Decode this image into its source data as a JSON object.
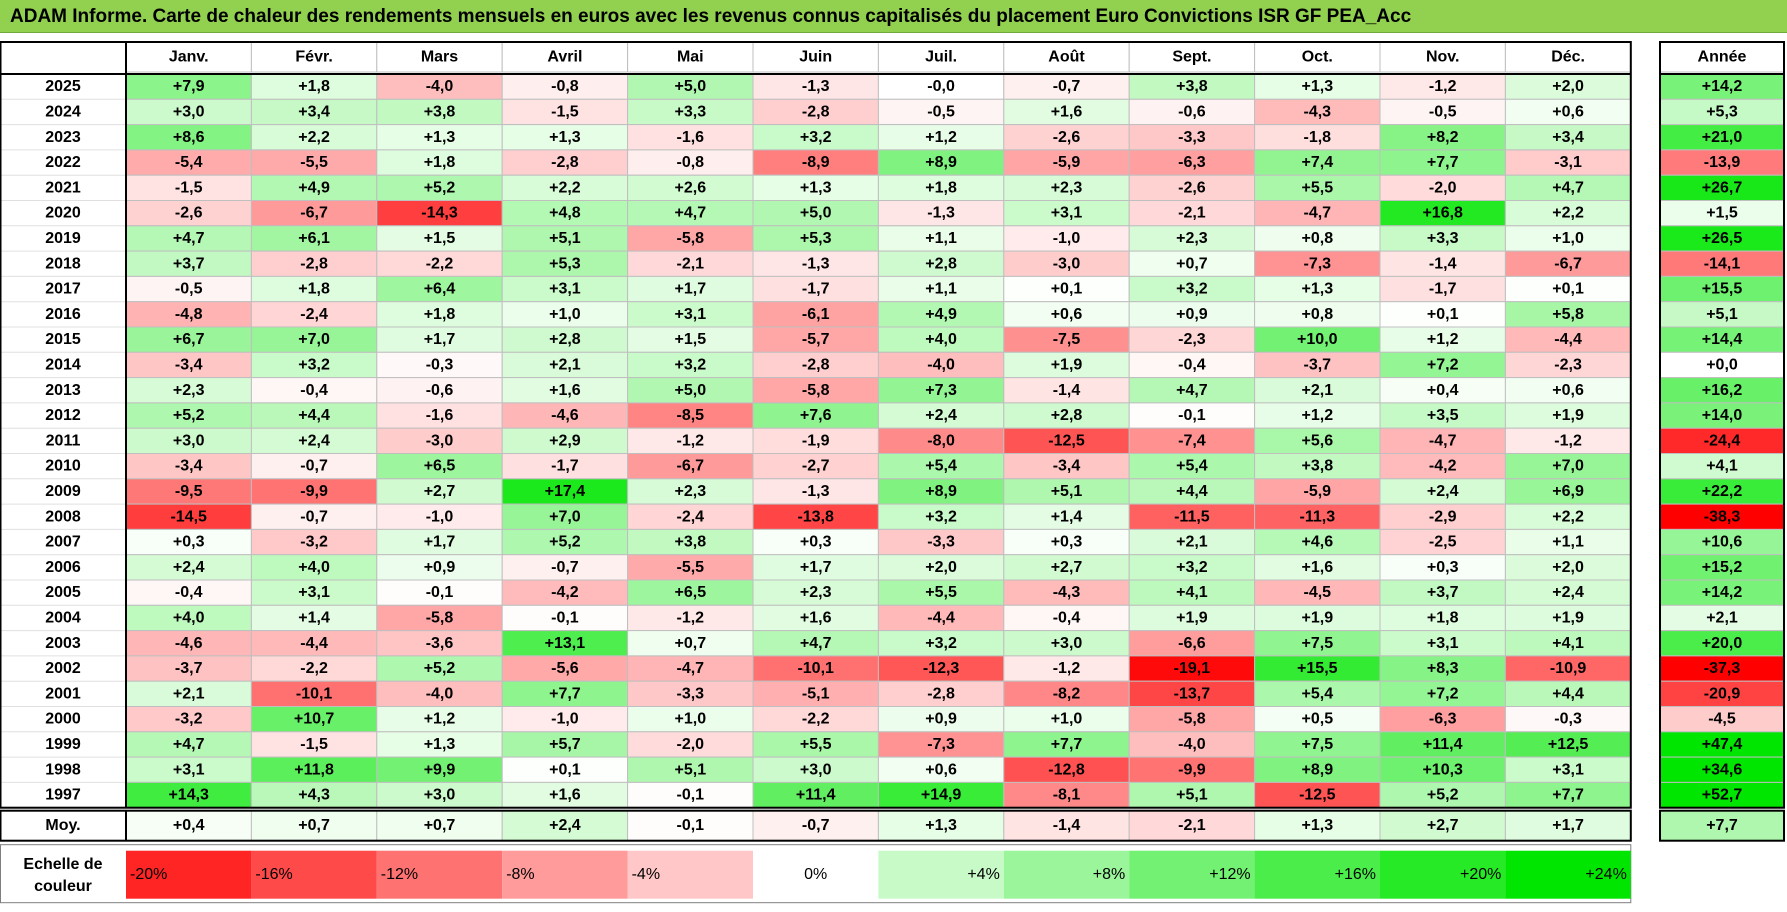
{
  "title": "ADAM Informe. Carte de chaleur des rendements mensuels en euros avec les revenus connus capitalisés du placement Euro Convictions ISR GF PEA_Acc",
  "chart_data": {
    "type": "heatmap",
    "months": [
      "Janv.",
      "Févr.",
      "Mars",
      "Avril",
      "Mai",
      "Juin",
      "Juil.",
      "Août",
      "Sept.",
      "Oct.",
      "Nov.",
      "Déc."
    ],
    "annual_header": "Année",
    "rows": [
      {
        "year": "2025",
        "values": [
          "+7,9",
          "+1,8",
          "-4,0",
          "-0,8",
          "+5,0",
          "-1,3",
          "-0,0",
          "-0,7",
          "+3,8",
          "+1,3",
          "-1,2",
          "+2,0"
        ],
        "annual": "+14,2"
      },
      {
        "year": "2024",
        "values": [
          "+3,0",
          "+3,4",
          "+3,8",
          "-1,5",
          "+3,3",
          "-2,8",
          "-0,5",
          "+1,6",
          "-0,6",
          "-4,3",
          "-0,5",
          "+0,6"
        ],
        "annual": "+5,3"
      },
      {
        "year": "2023",
        "values": [
          "+8,6",
          "+2,2",
          "+1,3",
          "+1,3",
          "-1,6",
          "+3,2",
          "+1,2",
          "-2,6",
          "-3,3",
          "-1,8",
          "+8,2",
          "+3,4"
        ],
        "annual": "+21,0"
      },
      {
        "year": "2022",
        "values": [
          "-5,4",
          "-5,5",
          "+1,8",
          "-2,8",
          "-0,8",
          "-8,9",
          "+8,9",
          "-5,9",
          "-6,3",
          "+7,4",
          "+7,7",
          "-3,1"
        ],
        "annual": "-13,9"
      },
      {
        "year": "2021",
        "values": [
          "-1,5",
          "+4,9",
          "+5,2",
          "+2,2",
          "+2,6",
          "+1,3",
          "+1,8",
          "+2,3",
          "-2,6",
          "+5,5",
          "-2,0",
          "+4,7"
        ],
        "annual": "+26,7"
      },
      {
        "year": "2020",
        "values": [
          "-2,6",
          "-6,7",
          "-14,3",
          "+4,8",
          "+4,7",
          "+5,0",
          "-1,3",
          "+3,1",
          "-2,1",
          "-4,7",
          "+16,8",
          "+2,2"
        ],
        "annual": "+1,5"
      },
      {
        "year": "2019",
        "values": [
          "+4,7",
          "+6,1",
          "+1,5",
          "+5,1",
          "-5,8",
          "+5,3",
          "+1,1",
          "-1,0",
          "+2,3",
          "+0,8",
          "+3,3",
          "+1,0"
        ],
        "annual": "+26,5"
      },
      {
        "year": "2018",
        "values": [
          "+3,7",
          "-2,8",
          "-2,2",
          "+5,3",
          "-2,1",
          "-1,3",
          "+2,8",
          "-3,0",
          "+0,7",
          "-7,3",
          "-1,4",
          "-6,7"
        ],
        "annual": "-14,1"
      },
      {
        "year": "2017",
        "values": [
          "-0,5",
          "+1,8",
          "+6,4",
          "+3,1",
          "+1,7",
          "-1,7",
          "+1,1",
          "+0,1",
          "+3,2",
          "+1,3",
          "-1,7",
          "+0,1"
        ],
        "annual": "+15,5"
      },
      {
        "year": "2016",
        "values": [
          "-4,8",
          "-2,4",
          "+1,8",
          "+1,0",
          "+3,1",
          "-6,1",
          "+4,9",
          "+0,6",
          "+0,9",
          "+0,8",
          "+0,1",
          "+5,8"
        ],
        "annual": "+5,1"
      },
      {
        "year": "2015",
        "values": [
          "+6,7",
          "+7,0",
          "+1,7",
          "+2,8",
          "+1,5",
          "-5,7",
          "+4,0",
          "-7,5",
          "-2,3",
          "+10,0",
          "+1,2",
          "-4,4"
        ],
        "annual": "+14,4"
      },
      {
        "year": "2014",
        "values": [
          "-3,4",
          "+3,2",
          "-0,3",
          "+2,1",
          "+3,2",
          "-2,8",
          "-4,0",
          "+1,9",
          "-0,4",
          "-3,7",
          "+7,2",
          "-2,3"
        ],
        "annual": "+0,0"
      },
      {
        "year": "2013",
        "values": [
          "+2,3",
          "-0,4",
          "-0,6",
          "+1,6",
          "+5,0",
          "-5,8",
          "+7,3",
          "-1,4",
          "+4,7",
          "+2,1",
          "+0,4",
          "+0,6"
        ],
        "annual": "+16,2"
      },
      {
        "year": "2012",
        "values": [
          "+5,2",
          "+4,4",
          "-1,6",
          "-4,6",
          "-8,5",
          "+7,6",
          "+2,4",
          "+2,8",
          "-0,1",
          "+1,2",
          "+3,5",
          "+1,9"
        ],
        "annual": "+14,0"
      },
      {
        "year": "2011",
        "values": [
          "+3,0",
          "+2,4",
          "-3,0",
          "+2,9",
          "-1,2",
          "-1,9",
          "-8,0",
          "-12,5",
          "-7,4",
          "+5,6",
          "-4,7",
          "-1,2"
        ],
        "annual": "-24,4"
      },
      {
        "year": "2010",
        "values": [
          "-3,4",
          "-0,7",
          "+6,5",
          "-1,7",
          "-6,7",
          "-2,7",
          "+5,4",
          "-3,4",
          "+5,4",
          "+3,8",
          "-4,2",
          "+7,0"
        ],
        "annual": "+4,1"
      },
      {
        "year": "2009",
        "values": [
          "-9,5",
          "-9,9",
          "+2,7",
          "+17,4",
          "+2,3",
          "-1,3",
          "+8,9",
          "+5,1",
          "+4,4",
          "-5,9",
          "+2,4",
          "+6,9"
        ],
        "annual": "+22,2"
      },
      {
        "year": "2008",
        "values": [
          "-14,5",
          "-0,7",
          "-1,0",
          "+7,0",
          "-2,4",
          "-13,8",
          "+3,2",
          "+1,4",
          "-11,5",
          "-11,3",
          "-2,9",
          "+2,2"
        ],
        "annual": "-38,3"
      },
      {
        "year": "2007",
        "values": [
          "+0,3",
          "-3,2",
          "+1,7",
          "+5,2",
          "+3,8",
          "+0,3",
          "-3,3",
          "+0,3",
          "+2,1",
          "+4,6",
          "-2,5",
          "+1,1"
        ],
        "annual": "+10,6"
      },
      {
        "year": "2006",
        "values": [
          "+2,4",
          "+4,0",
          "+0,9",
          "-0,7",
          "-5,5",
          "+1,7",
          "+2,0",
          "+2,7",
          "+3,2",
          "+1,6",
          "+0,3",
          "+2,0"
        ],
        "annual": "+15,2"
      },
      {
        "year": "2005",
        "values": [
          "-0,4",
          "+3,1",
          "-0,1",
          "-4,2",
          "+6,5",
          "+2,3",
          "+5,5",
          "-4,3",
          "+4,1",
          "-4,5",
          "+3,7",
          "+2,4"
        ],
        "annual": "+14,2"
      },
      {
        "year": "2004",
        "values": [
          "+4,0",
          "+1,4",
          "-5,8",
          "-0,1",
          "-1,2",
          "+1,6",
          "-4,4",
          "-0,4",
          "+1,9",
          "+1,9",
          "+1,8",
          "+1,9"
        ],
        "annual": "+2,1"
      },
      {
        "year": "2003",
        "values": [
          "-4,6",
          "-4,4",
          "-3,6",
          "+13,1",
          "+0,7",
          "+4,7",
          "+3,2",
          "+3,0",
          "-6,6",
          "+7,5",
          "+3,1",
          "+4,1"
        ],
        "annual": "+20,0"
      },
      {
        "year": "2002",
        "values": [
          "-3,7",
          "-2,2",
          "+5,2",
          "-5,6",
          "-4,7",
          "-10,1",
          "-12,3",
          "-1,2",
          "-19,1",
          "+15,5",
          "+8,3",
          "-10,9"
        ],
        "annual": "-37,3"
      },
      {
        "year": "2001",
        "values": [
          "+2,1",
          "-10,1",
          "-4,0",
          "+7,7",
          "-3,3",
          "-5,1",
          "-2,8",
          "-8,2",
          "-13,7",
          "+5,4",
          "+7,2",
          "+4,4"
        ],
        "annual": "-20,9"
      },
      {
        "year": "2000",
        "values": [
          "-3,2",
          "+10,7",
          "+1,2",
          "-1,0",
          "+1,0",
          "-2,2",
          "+0,9",
          "+1,0",
          "-5,8",
          "+0,5",
          "-6,3",
          "-0,3"
        ],
        "annual": "-4,5"
      },
      {
        "year": "1999",
        "values": [
          "+4,7",
          "-1,5",
          "+1,3",
          "+5,7",
          "-2,0",
          "+5,5",
          "-7,3",
          "+7,7",
          "-4,0",
          "+7,5",
          "+11,4",
          "+12,5"
        ],
        "annual": "+47,4"
      },
      {
        "year": "1998",
        "values": [
          "+3,1",
          "+11,8",
          "+9,9",
          "+0,1",
          "+5,1",
          "+3,0",
          "+0,6",
          "-12,8",
          "-9,9",
          "+8,9",
          "+10,3",
          "+3,1"
        ],
        "annual": "+34,6"
      },
      {
        "year": "1997",
        "values": [
          "+14,3",
          "+4,3",
          "+3,0",
          "+1,6",
          "-0,1",
          "+11,4",
          "+14,9",
          "-8,1",
          "+5,1",
          "-12,5",
          "+5,2",
          "+7,7"
        ],
        "annual": "+52,7"
      }
    ],
    "average": {
      "label": "Moy.",
      "values": [
        "+0,4",
        "+0,7",
        "+0,7",
        "+2,4",
        "-0,1",
        "-0,7",
        "+1,3",
        "-1,4",
        "-2,1",
        "+1,3",
        "+2,7",
        "+1,7"
      ],
      "annual": "+7,7"
    },
    "scale": {
      "label_line1": "Echelle de",
      "label_line2": "couleur",
      "steps": [
        {
          "label": "-20%",
          "value": -20
        },
        {
          "label": "-16%",
          "value": -16
        },
        {
          "label": "-12%",
          "value": -12
        },
        {
          "label": "-8%",
          "value": -8
        },
        {
          "label": "-4%",
          "value": -4
        },
        {
          "label": "0%",
          "value": 0
        },
        {
          "label": "+4%",
          "value": 4
        },
        {
          "label": "+8%",
          "value": 8
        },
        {
          "label": "+12%",
          "value": 12
        },
        {
          "label": "+16%",
          "value": 16
        },
        {
          "label": "+20%",
          "value": 20
        },
        {
          "label": "+24%",
          "value": 24
        }
      ]
    },
    "colors": {
      "neg_max": "#ff0000",
      "pos_max": "#00e600",
      "neutral": "#ffffff",
      "title_bg": "#92d050",
      "grid": "#bfbfbf",
      "border": "#000000"
    }
  }
}
